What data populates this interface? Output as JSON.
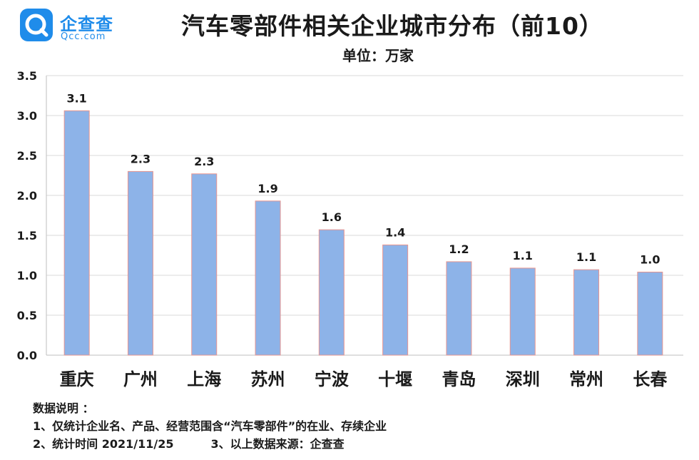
{
  "logo": {
    "cn": "企查查",
    "en": "Qcc.com"
  },
  "chart_data": {
    "type": "bar",
    "title": "汽车零部件相关企业城市分布（前10）",
    "unit": "单位：万家",
    "categories": [
      "重庆",
      "广州",
      "上海",
      "苏州",
      "宁波",
      "十堰",
      "青岛",
      "深圳",
      "常州",
      "长春"
    ],
    "values": [
      3.06,
      2.3,
      2.27,
      1.93,
      1.57,
      1.38,
      1.17,
      1.09,
      1.07,
      1.04
    ],
    "data_labels": [
      "3.1",
      "2.3",
      "2.3",
      "1.9",
      "1.6",
      "1.4",
      "1.2",
      "1.1",
      "1.1",
      "1.0"
    ],
    "yticks": [
      "0.0",
      "0.5",
      "1.0",
      "1.5",
      "2.0",
      "2.5",
      "3.0",
      "3.5"
    ],
    "ylim": [
      0,
      3.5
    ],
    "grid": true,
    "bar_color": "#8db3e8",
    "bar_edge_color": "#e8958f"
  },
  "notes": {
    "heading": "数据说明 ：",
    "line1": "1、仅统计企业名、产品、经营范围含“汽车零部件”的在业、存续企业",
    "line2a": "2、统计时间 2021/11/25",
    "line2b": "3、以上数据来源：企查查"
  }
}
